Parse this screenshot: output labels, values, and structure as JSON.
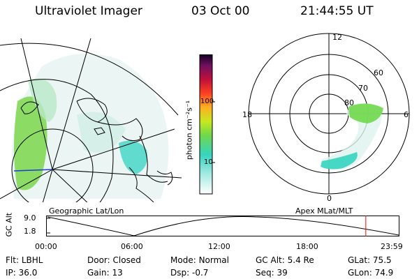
{
  "header": {
    "instrument": "Ultraviolet Imager",
    "date": "03 Oct 00",
    "time": "21:44:55 UT"
  },
  "colorbar": {
    "unit_label": "photon cm⁻²s⁻¹",
    "ticks": [
      "100",
      "10"
    ]
  },
  "polar": {
    "mlt_labels": {
      "top": "12",
      "left": "18",
      "right": "6",
      "bottom": "0"
    },
    "lat_labels": [
      "60",
      "70",
      "80"
    ]
  },
  "panel_labels": {
    "left": "Geographic Lat/Lon",
    "right": "Apex MLat/MLT"
  },
  "altitude_plot": {
    "axis_label": "GC Alt",
    "y_ticks": [
      "9.0",
      "1.8"
    ],
    "x_ticks": [
      "00:00",
      "06:00",
      "12:00",
      "18:00",
      "23:59"
    ],
    "marker_color": "#ff0000",
    "marker_time_hours": 21.75
  },
  "info": [
    {
      "label": "Flt:",
      "value": "LBHL"
    },
    {
      "label": "IP:",
      "value": "36.0"
    },
    {
      "label": "Door:",
      "value": "Closed"
    },
    {
      "label": "Gain:",
      "value": "13"
    },
    {
      "label": "Mode:",
      "value": "Normal"
    },
    {
      "label": "Dsp:",
      "value": "-0.7"
    },
    {
      "label": "GC Alt:",
      "value": "5.4 Re"
    },
    {
      "label": "Seq:",
      "value": "39"
    },
    {
      "label": "GLat:",
      "value": "75.5"
    },
    {
      "label": "GLon:",
      "value": "74.9"
    }
  ]
}
